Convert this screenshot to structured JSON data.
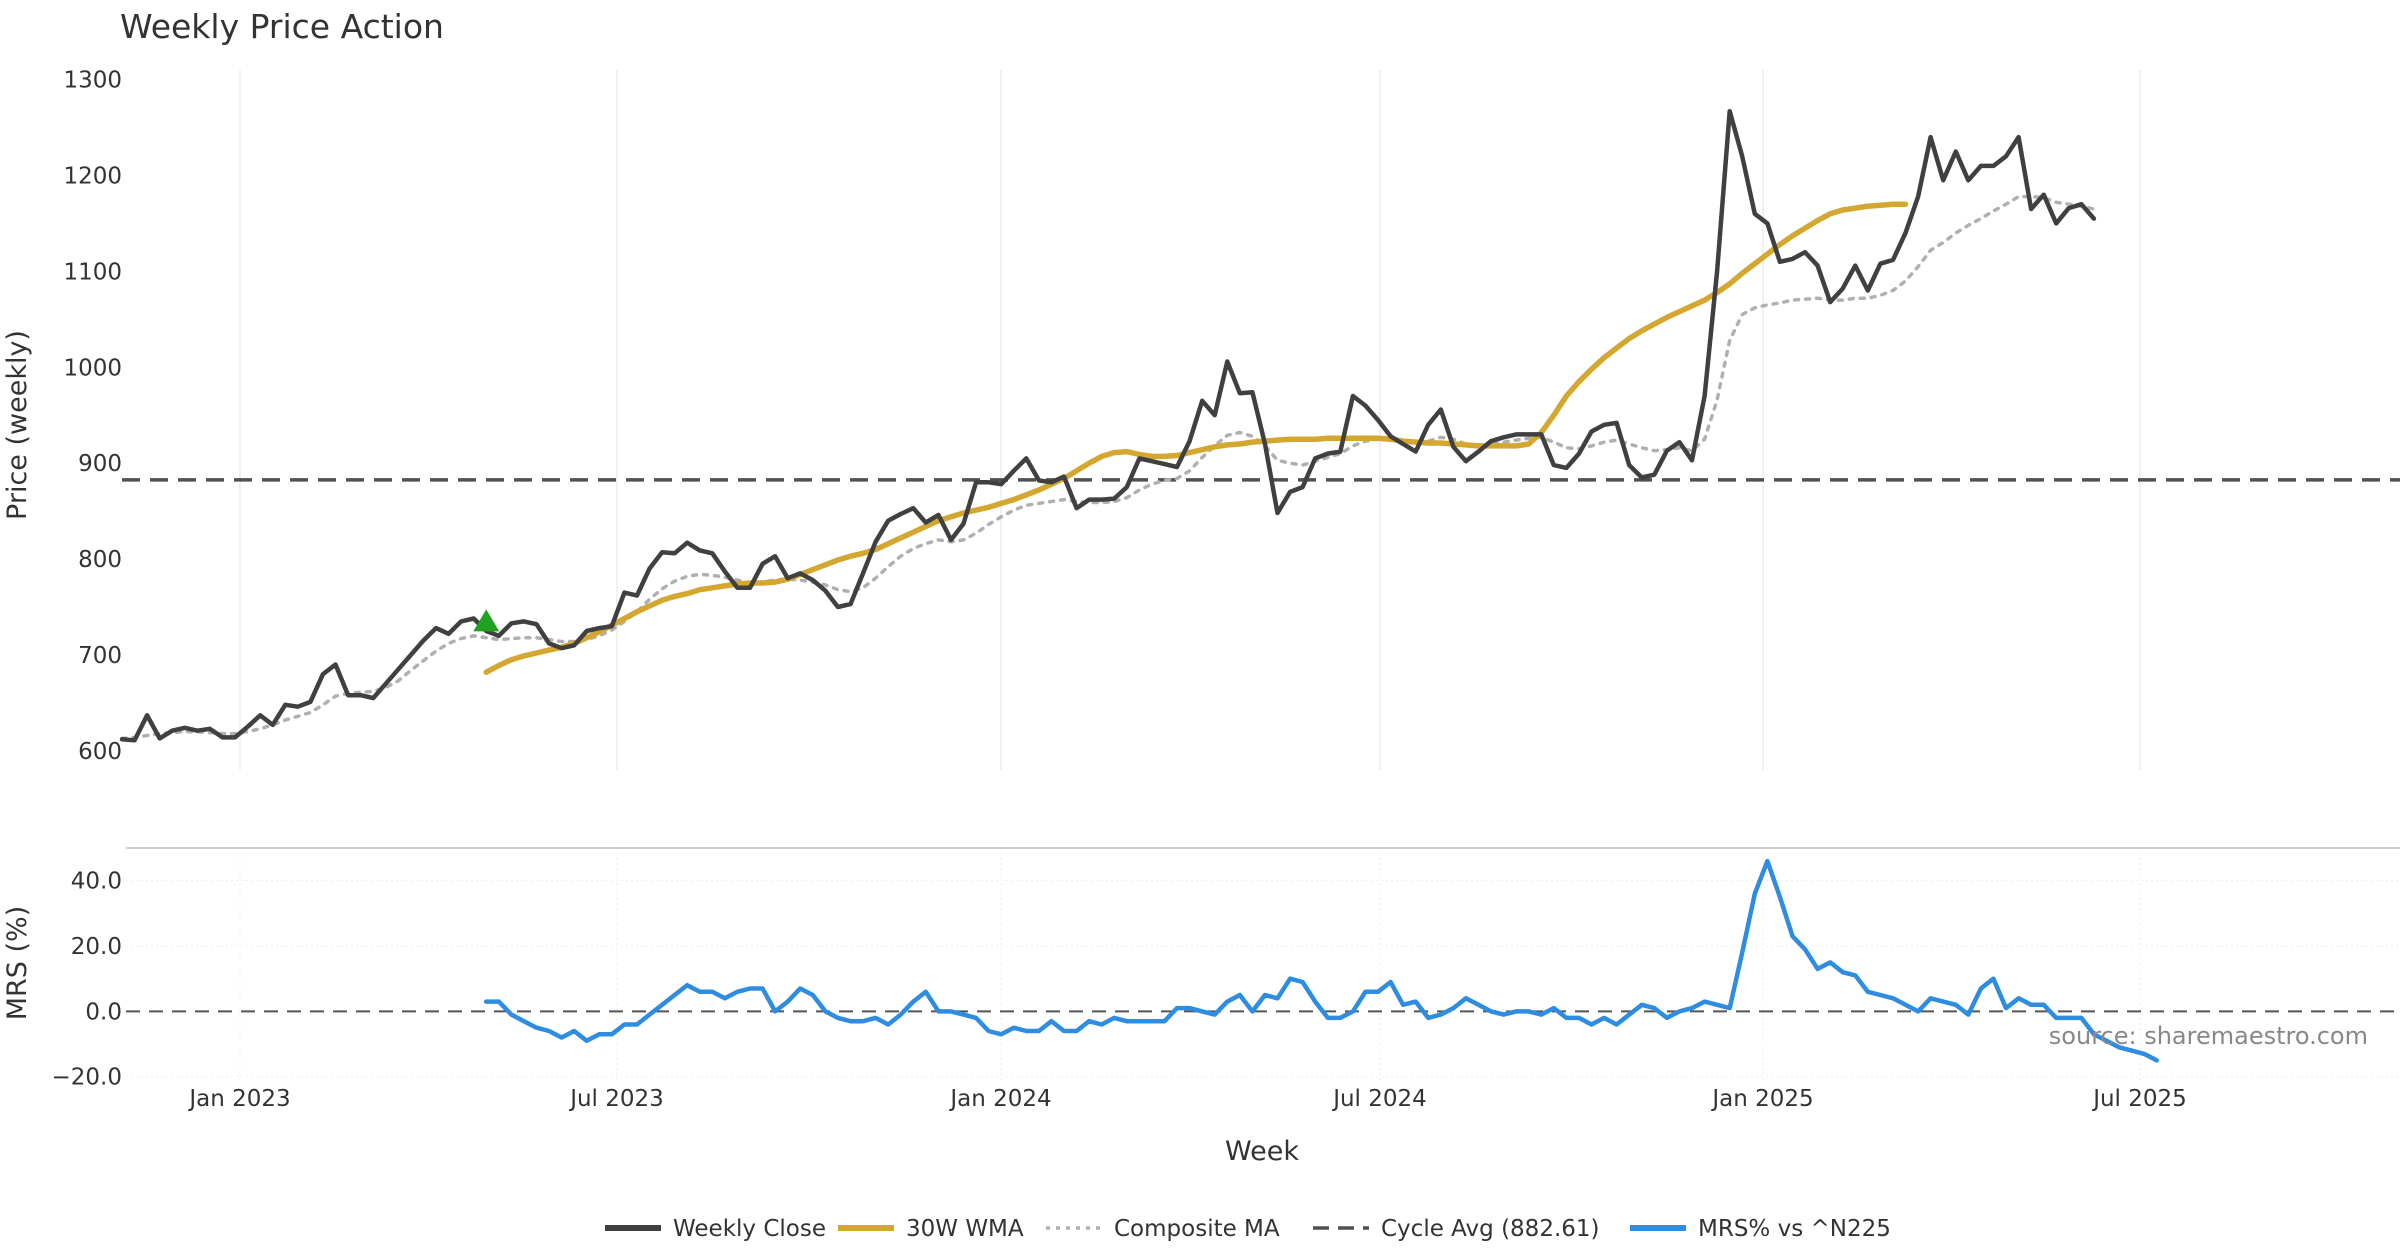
{
  "chart_data": {
    "type": "line",
    "title": "Weekly Price Action",
    "source": "source: sharemaestro.com",
    "xlabel": "Week",
    "x_ticks": [
      "Jan 2023",
      "Jul 2023",
      "Jan 2024",
      "Jul 2024",
      "Jan 2025",
      "Jul 2025"
    ],
    "price_panel": {
      "ylabel": "Price (weekly)",
      "ylim": [
        580,
        1310
      ],
      "y_ticks": [
        "600",
        "700",
        "800",
        "900",
        "1000",
        "1100",
        "1200",
        "1300"
      ],
      "y_tick_values": [
        600,
        700,
        800,
        900,
        1000,
        1100,
        1200,
        1300
      ],
      "cycle_avg": 882.61,
      "signal_marker": {
        "type": "buy-triangle",
        "week_index": 29,
        "value": 735,
        "color": "#22a022"
      },
      "series": [
        {
          "name": "Weekly Close",
          "color": "#404040",
          "start_index": 0,
          "values": [
            612,
            611,
            637,
            613,
            621,
            624,
            621,
            623,
            614,
            614,
            625,
            637,
            627,
            648,
            646,
            651,
            680,
            690,
            658,
            658,
            655,
            670,
            685,
            700,
            715,
            728,
            722,
            735,
            738,
            725,
            720,
            733,
            735,
            732,
            712,
            707,
            710,
            725,
            728,
            730,
            765,
            762,
            790,
            807,
            806,
            817,
            809,
            806,
            787,
            770,
            770,
            795,
            803,
            780,
            785,
            778,
            767,
            750,
            753,
            785,
            818,
            840,
            847,
            853,
            838,
            846,
            820,
            837,
            880,
            880,
            878,
            892,
            905,
            882,
            880,
            886,
            853,
            862,
            862,
            863,
            875,
            905,
            902,
            899,
            896,
            923,
            965,
            950,
            1006,
            973,
            974,
            920,
            848,
            870,
            875,
            905,
            910,
            912,
            970,
            960,
            945,
            928,
            920,
            912,
            940,
            956,
            917,
            902,
            912,
            923,
            927,
            930,
            930,
            930,
            898,
            895,
            910,
            933,
            940,
            942,
            898,
            885,
            888,
            913,
            922,
            903,
            970,
            1100,
            1267,
            1220,
            1160,
            1150,
            1110,
            1113,
            1120,
            1106,
            1068,
            1082,
            1106,
            1080,
            1108,
            1112,
            1140,
            1178,
            1240,
            1195,
            1225,
            1195,
            1210,
            1210,
            1220,
            1240,
            1165,
            1180,
            1150,
            1166,
            1170,
            1155
          ]
        },
        {
          "name": "30W WMA",
          "color": "#d4a830",
          "start_index": 29,
          "values": [
            682,
            689,
            695,
            699,
            702,
            705,
            708,
            712,
            718,
            724,
            731,
            738,
            745,
            751,
            757,
            761,
            764,
            768,
            770,
            772,
            774,
            775,
            775,
            776,
            779,
            784,
            789,
            794,
            799,
            803,
            806,
            810,
            816,
            822,
            828,
            834,
            840,
            844,
            848,
            851,
            854,
            858,
            862,
            867,
            872,
            878,
            884,
            892,
            900,
            907,
            911,
            912,
            909,
            907,
            907,
            908,
            911,
            914,
            917,
            919,
            920,
            922,
            923,
            924,
            925,
            925,
            925,
            926,
            926,
            926,
            926,
            926,
            925,
            923,
            922,
            921,
            921,
            920,
            919,
            918,
            918,
            918,
            918,
            920,
            932,
            950,
            970,
            985,
            998,
            1010,
            1020,
            1030,
            1038,
            1045,
            1052,
            1058,
            1064,
            1070,
            1078,
            1087,
            1098,
            1108,
            1118,
            1128,
            1137,
            1145,
            1153,
            1160,
            1164,
            1166,
            1168,
            1169,
            1170,
            1170
          ]
        },
        {
          "name": "Composite MA",
          "color": "#b0b0b0",
          "dashed": true,
          "start_index": 0,
          "values": [
            613,
            614,
            616,
            618,
            619,
            620,
            620,
            619,
            618,
            618,
            620,
            623,
            627,
            632,
            636,
            640,
            648,
            657,
            660,
            661,
            662,
            666,
            673,
            684,
            694,
            704,
            712,
            717,
            720,
            718,
            716,
            717,
            718,
            718,
            716,
            714,
            714,
            716,
            720,
            726,
            735,
            745,
            758,
            769,
            777,
            782,
            784,
            783,
            781,
            778,
            775,
            776,
            778,
            779,
            778,
            776,
            773,
            768,
            766,
            770,
            780,
            792,
            803,
            811,
            816,
            820,
            818,
            820,
            827,
            836,
            844,
            851,
            856,
            858,
            860,
            862,
            860,
            859,
            859,
            860,
            864,
            872,
            878,
            882,
            884,
            892,
            906,
            918,
            929,
            932,
            928,
            918,
            903,
            900,
            898,
            902,
            906,
            910,
            918,
            923,
            925,
            925,
            923,
            920,
            923,
            927,
            925,
            920,
            918,
            920,
            922,
            924,
            926,
            927,
            922,
            916,
            915,
            918,
            922,
            924,
            920,
            916,
            913,
            914,
            916,
            913,
            925,
            966,
            1028,
            1055,
            1062,
            1065,
            1067,
            1070,
            1071,
            1072,
            1070,
            1070,
            1072,
            1072,
            1075,
            1080,
            1090,
            1105,
            1122,
            1130,
            1140,
            1148,
            1155,
            1163,
            1170,
            1178,
            1178,
            1177,
            1172,
            1170,
            1168,
            1165
          ]
        }
      ]
    },
    "mrs_panel": {
      "ylabel": "MRS (%)",
      "ylim": [
        -21,
        50
      ],
      "y_ticks": [
        "40.0",
        "20.0",
        "0.0",
        "−20.0"
      ],
      "y_tick_values": [
        40,
        20,
        0,
        -20
      ],
      "series": [
        {
          "name": "MRS% vs ^N225",
          "color": "#2e8de0",
          "start_index": 29,
          "values": [
            3,
            3,
            -1,
            -3,
            -5,
            -6,
            -8,
            -6,
            -9,
            -7,
            -7,
            -4,
            -4,
            -1,
            2,
            5,
            8,
            6,
            6,
            4,
            6,
            7,
            7,
            0,
            3,
            7,
            5,
            0,
            -2,
            -3,
            -3,
            -2,
            -4,
            -1,
            3,
            6,
            0,
            0,
            -1,
            -2,
            -6,
            -7,
            -5,
            -6,
            -6,
            -3,
            -6,
            -6,
            -3,
            -4,
            -2,
            -3,
            -3,
            -3,
            -3,
            1,
            1,
            0,
            -1,
            3,
            5,
            0,
            5,
            4,
            10,
            9,
            3,
            -2,
            -2,
            0,
            6,
            6,
            9,
            2,
            3,
            -2,
            -1,
            1,
            4,
            2,
            0,
            -1,
            0,
            0,
            -1,
            1,
            -2,
            -2,
            -4,
            -2,
            -4,
            -1,
            2,
            1,
            -2,
            0,
            1,
            3,
            2,
            1,
            18,
            36,
            46,
            35,
            23,
            19,
            13,
            15,
            12,
            11,
            6,
            5,
            4,
            2,
            0,
            4,
            3,
            2,
            -1,
            7,
            10,
            1,
            4,
            2,
            2,
            -2,
            -2,
            -2,
            -7,
            -9,
            -11,
            -12,
            -13,
            -15
          ]
        }
      ]
    },
    "legend": {
      "placement": "bottom-center",
      "items": [
        {
          "label": "Weekly Close",
          "color": "#404040",
          "style": "solid"
        },
        {
          "label": "30W WMA",
          "color": "#d4a830",
          "style": "solid"
        },
        {
          "label": "Composite MA",
          "color": "#b0b0b0",
          "style": "dotted"
        },
        {
          "label": "Cycle Avg (882.61)",
          "color": "#505050",
          "style": "dashed"
        },
        {
          "label": "MRS% vs ^N225",
          "color": "#2e8de0",
          "style": "solid"
        }
      ]
    }
  }
}
